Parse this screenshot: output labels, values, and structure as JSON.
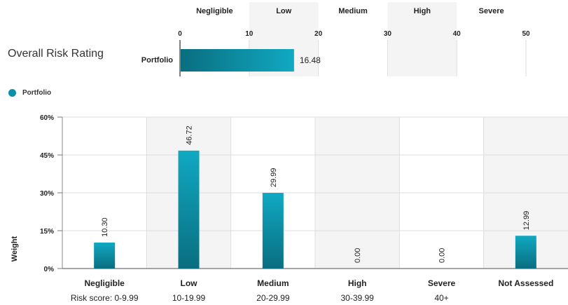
{
  "overall": {
    "title": "Overall Risk Rating",
    "band_labels": [
      "Negligible",
      "Low",
      "Medium",
      "High",
      "Severe"
    ],
    "ticks": [
      0,
      10,
      20,
      30,
      40,
      50
    ],
    "category": "Portfolio",
    "value": 16.48,
    "value_label": "16.48",
    "xlim": [
      0,
      50
    ]
  },
  "legend": {
    "label": "Portfolio",
    "color": "#0a8fa8"
  },
  "colors": {
    "bar_dark": "#0a6e80",
    "bar_light": "#10a9c2",
    "shade": "#f4f4f4",
    "grid": "#dddddd"
  },
  "chart_data": [
    {
      "type": "bar",
      "orientation": "horizontal",
      "categories": [
        "Portfolio"
      ],
      "values": [
        16.48
      ],
      "xlim": [
        0,
        50
      ],
      "bands": [
        "Negligible",
        "Low",
        "Medium",
        "High",
        "Severe"
      ]
    },
    {
      "type": "bar",
      "categories": [
        "Negligible",
        "Low",
        "Medium",
        "High",
        "Severe",
        "Not Assessed"
      ],
      "sublabels": [
        "Risk score: 0-9.99",
        "10-19.99",
        "20-29.99",
        "30-39.99",
        "40+",
        ""
      ],
      "series": [
        {
          "name": "Portfolio",
          "values": [
            10.3,
            46.72,
            29.99,
            0.0,
            0.0,
            12.99
          ],
          "labels": [
            "10.30",
            "46.72",
            "29.99",
            "0.00",
            "0.00",
            "12.99"
          ]
        }
      ],
      "ylabel": "Weight",
      "ylim": [
        0,
        60
      ],
      "yticks": [
        0,
        15,
        30,
        45,
        60
      ],
      "ytick_labels": [
        "0%",
        "15%",
        "30%",
        "45%",
        "60%"
      ],
      "grid": true,
      "legend": "top-left"
    }
  ]
}
